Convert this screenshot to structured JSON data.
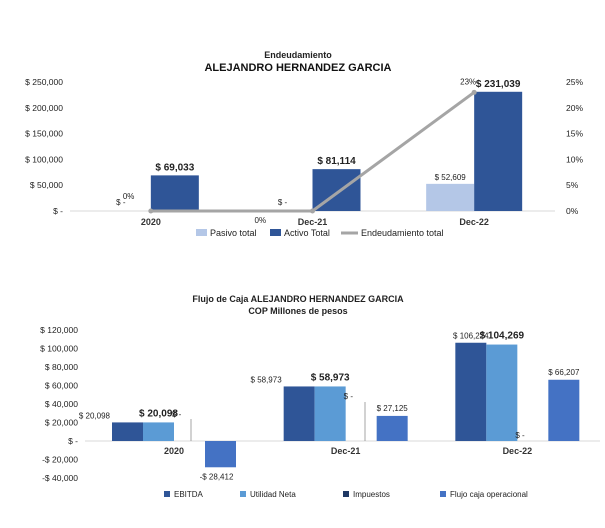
{
  "colors": {
    "pasivo": "#b4c7e7",
    "activo": "#2f5597",
    "line": "#a5a5a5",
    "ebitda": "#2f5597",
    "utilidad": "#5b9bd5",
    "impuestos": "#1f3864",
    "flujo": "#4472c4",
    "grid": "#d9d9d9",
    "leader": "#7f7f7f"
  },
  "chart_data": [
    {
      "type": "bar",
      "title": "Endeudamiento",
      "subtitle": "ALEJANDRO HERNANDEZ GARCIA",
      "categories": [
        "2020",
        "Dec-21",
        "Dec-22"
      ],
      "ylim": [
        0,
        250000
      ],
      "y2lim": [
        0,
        0.25
      ],
      "y_ticks": [
        "$ -",
        "$ 50,000",
        "$ 100,000",
        "$ 150,000",
        "$ 200,000",
        "$ 250,000"
      ],
      "y2_ticks": [
        "0%",
        "5%",
        "10%",
        "15%",
        "20%",
        "25%"
      ],
      "series": [
        {
          "name": "Pasivo total",
          "values": [
            0,
            0,
            52609
          ],
          "labels": [
            "$ -",
            "$ -",
            "$ 52,609"
          ]
        },
        {
          "name": "Activo Total",
          "values": [
            69033,
            81114,
            231039
          ],
          "labels": [
            "$ 69,033",
            "$ 81,114",
            "$ 231,039"
          ]
        },
        {
          "name": "Endeudamiento total",
          "type": "line",
          "axis": "secondary",
          "values": [
            0,
            0,
            0.23
          ],
          "labels": [
            "0%",
            "0%",
            "23%"
          ]
        }
      ]
    },
    {
      "type": "bar",
      "title": "Flujo de Caja ALEJANDRO HERNANDEZ GARCIA",
      "subtitle": "COP Millones de pesos",
      "categories": [
        "2020",
        "Dec-21",
        "Dec-22"
      ],
      "ylim": [
        -40000,
        120000
      ],
      "y_ticks": [
        "-$ 40,000",
        "-$ 20,000",
        "$ -",
        "$ 20,000",
        "$ 40,000",
        "$ 60,000",
        "$ 80,000",
        "$ 100,000",
        "$ 120,000"
      ],
      "series": [
        {
          "name": "EBITDA",
          "values": [
            20098,
            58973,
            106224
          ],
          "labels": [
            "$ 20,098",
            "$ 58,973",
            "$ 106,224"
          ]
        },
        {
          "name": "Utilidad Neta",
          "values": [
            20098,
            58973,
            104269
          ],
          "labels": [
            "$ 20,098",
            "$ 58,973",
            "$ 104,269"
          ]
        },
        {
          "name": "Impuestos",
          "values": [
            0,
            0,
            0
          ],
          "labels": [
            "$ -",
            "$ -",
            "$ -"
          ]
        },
        {
          "name": "Flujo caja operacional",
          "values": [
            -28412,
            27125,
            66207
          ],
          "labels": [
            "-$ 28,412",
            "$ 27,125",
            "$ 66,207"
          ]
        }
      ]
    }
  ]
}
